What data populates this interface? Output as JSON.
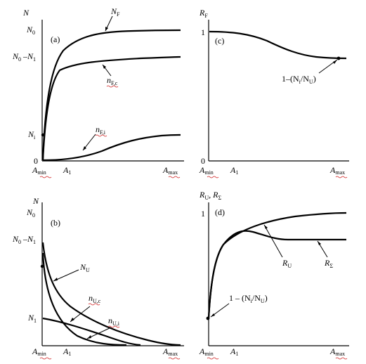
{
  "figure": {
    "chart_data": [
      {
        "type": "line",
        "panel": "(a)",
        "ylabel": "N",
        "yticks": [
          "N0",
          "N0 −N1",
          "Ni",
          "0"
        ],
        "xticks": [
          "Amin",
          "A1",
          "Amax"
        ],
        "series": [
          {
            "name": "NF",
            "x": [
              0,
              0.05,
              0.1,
              0.15,
              0.2,
              0.3,
              0.4,
              0.5,
              0.6,
              0.7,
              0.8,
              0.9,
              1.0
            ],
            "y": [
              0,
              0.55,
              0.73,
              0.82,
              0.87,
              0.93,
              0.95,
              0.965,
              0.975,
              0.98,
              0.985,
              0.99,
              0.99
            ]
          },
          {
            "name": "nF,c",
            "x": [
              0,
              0.05,
              0.1,
              0.15,
              0.2,
              0.3,
              0.4,
              0.5,
              0.6,
              0.7,
              0.8,
              0.9,
              1.0
            ],
            "y": [
              0,
              0.45,
              0.6,
              0.66,
              0.7,
              0.73,
              0.74,
              0.745,
              0.75,
              0.755,
              0.76,
              0.765,
              0.77
            ]
          },
          {
            "name": "nF,i",
            "x": [
              0,
              0.1,
              0.2,
              0.3,
              0.4,
              0.5,
              0.6,
              0.7,
              0.8,
              0.9,
              1.0
            ],
            "y": [
              0,
              0.01,
              0.02,
              0.04,
              0.08,
              0.13,
              0.17,
              0.2,
              0.215,
              0.22,
              0.225
            ]
          }
        ]
      },
      {
        "type": "line",
        "panel": "(c)",
        "ylabel": "RF",
        "yticks": [
          "1",
          "0"
        ],
        "xticks": [
          "Amin",
          "A1",
          "Amax"
        ],
        "annotation": "1−(Ni/NU)",
        "series": [
          {
            "x": [
              0,
              0.1,
              0.2,
              0.3,
              0.4,
              0.5,
              0.6,
              0.7,
              0.8,
              0.9,
              0.95,
              1.0
            ],
            "y": [
              1.0,
              1.0,
              0.99,
              0.97,
              0.94,
              0.9,
              0.86,
              0.83,
              0.81,
              0.8,
              0.8,
              0.8
            ]
          }
        ]
      },
      {
        "type": "line",
        "panel": "(b)",
        "ylabel": "N",
        "yticks": [
          "N0",
          "N0 −N1",
          "N1"
        ],
        "xticks": [
          "Amin",
          "A1",
          "Amax"
        ],
        "series": [
          {
            "name": "NU",
            "x": [
              0,
              0.05,
              0.1,
              0.2,
              0.3,
              0.4,
              0.5,
              0.6,
              0.7,
              0.8,
              0.9,
              1.0
            ],
            "y": [
              0.74,
              0.5,
              0.38,
              0.25,
              0.17,
              0.11,
              0.07,
              0.04,
              0.02,
              0.01,
              0.0,
              0.0
            ]
          },
          {
            "name": "nU,c",
            "x": [
              0,
              0.05,
              0.1,
              0.2,
              0.3,
              0.4,
              0.5,
              0.6,
              0.7,
              0.8
            ],
            "y": [
              0.7,
              0.44,
              0.31,
              0.15,
              0.07,
              0.03,
              0.01,
              0.0,
              0.0,
              0.0
            ]
          },
          {
            "name": "nU,i",
            "x": [
              0,
              0.1,
              0.2,
              0.3,
              0.4,
              0.5,
              0.6,
              0.7,
              0.8
            ],
            "y": [
              0.3,
              0.27,
              0.2,
              0.13,
              0.07,
              0.03,
              0.01,
              0.0,
              0.0
            ]
          }
        ]
      },
      {
        "type": "line",
        "panel": "(d)",
        "ylabel": "RU, RΣ",
        "yticks": [
          "1"
        ],
        "xticks": [
          "Amin",
          "A1",
          "Amax"
        ],
        "annotation": "1 − (Ni/NU)",
        "series": [
          {
            "name": "RU",
            "x": [
              0,
              0.05,
              0.1,
              0.15,
              0.2,
              0.3,
              0.4,
              0.5,
              0.6,
              0.7,
              0.8,
              0.9,
              1.0
            ],
            "y": [
              0.3,
              0.65,
              0.8,
              0.86,
              0.89,
              0.92,
              0.94,
              0.96,
              0.97,
              0.975,
              0.98,
              0.99,
              1.0
            ]
          },
          {
            "name": "RΣ",
            "x": [
              0,
              0.05,
              0.1,
              0.15,
              0.2,
              0.25,
              0.3,
              0.35,
              0.4,
              0.5,
              0.6,
              0.7,
              0.8,
              0.9,
              1.0
            ],
            "y": [
              0.3,
              0.65,
              0.8,
              0.85,
              0.85,
              0.83,
              0.81,
              0.8,
              0.79,
              0.79,
              0.79,
              0.79,
              0.79,
              0.79,
              0.79
            ]
          }
        ]
      }
    ]
  },
  "labels": {
    "a": {
      "panel": "(a)",
      "ylabel": "N",
      "n0": "N",
      "n0_sub": "0",
      "n0n1_a": "N",
      "n0n1_a_sub": "0",
      "n0n1_mid": " –N",
      "n0n1_b_sub": "1",
      "ni": "N",
      "ni_sub": "i",
      "zero": "0",
      "nf": "N",
      "nf_sub": "F",
      "nfc": "n",
      "nfc_sub": "F,c",
      "nfi": "n",
      "nfi_sub": "F,i",
      "amin": "A",
      "amin_sub": "min",
      "a1": "A",
      "a1_sub": "1",
      "amax": "A",
      "amax_sub": "max"
    },
    "c": {
      "panel": "(c)",
      "ylabel": "R",
      "ylabel_sub": "F",
      "one": "1",
      "zero": "0",
      "ann_a": "1–(N",
      "ann_a_sub": "i",
      "ann_b": "/N",
      "ann_b_sub": "U",
      "ann_c": ")",
      "amin": "A",
      "amin_sub": "min",
      "a1": "A",
      "a1_sub": "1",
      "amax": "A",
      "amax_sub": "max"
    },
    "b": {
      "panel": "(b)",
      "ylabel": "N",
      "n0": "N",
      "n0_sub": "0",
      "n0n1_a": "N",
      "n0n1_a_sub": "0",
      "n0n1_mid": " –N",
      "n0n1_b_sub": "1",
      "n1": "N",
      "n1_sub": "1",
      "nu": "N",
      "nu_sub": "U",
      "nuc": "n",
      "nuc_sub": "U,c",
      "nui": "n",
      "nui_sub": "U,i",
      "amin": "A",
      "amin_sub": "min",
      "a1": "A",
      "a1_sub": "1",
      "amax": "A",
      "amax_sub": "max"
    },
    "d": {
      "panel": "(d)",
      "ylabel_a": "R",
      "ylabel_a_sub": "U",
      "ylabel_mid": ", R",
      "ylabel_b_sub": "Σ",
      "one": "1",
      "ru": "R",
      "ru_sub": "U",
      "rs": "R",
      "rs_sub": "Σ",
      "ann_a": "1 – (N",
      "ann_a_sub": "i",
      "ann_b": "/N",
      "ann_b_sub": "U",
      "ann_c": ")",
      "amin": "A",
      "amin_sub": "min",
      "a1": "A",
      "a1_sub": "1",
      "amax": "A",
      "amax_sub": "max"
    }
  }
}
